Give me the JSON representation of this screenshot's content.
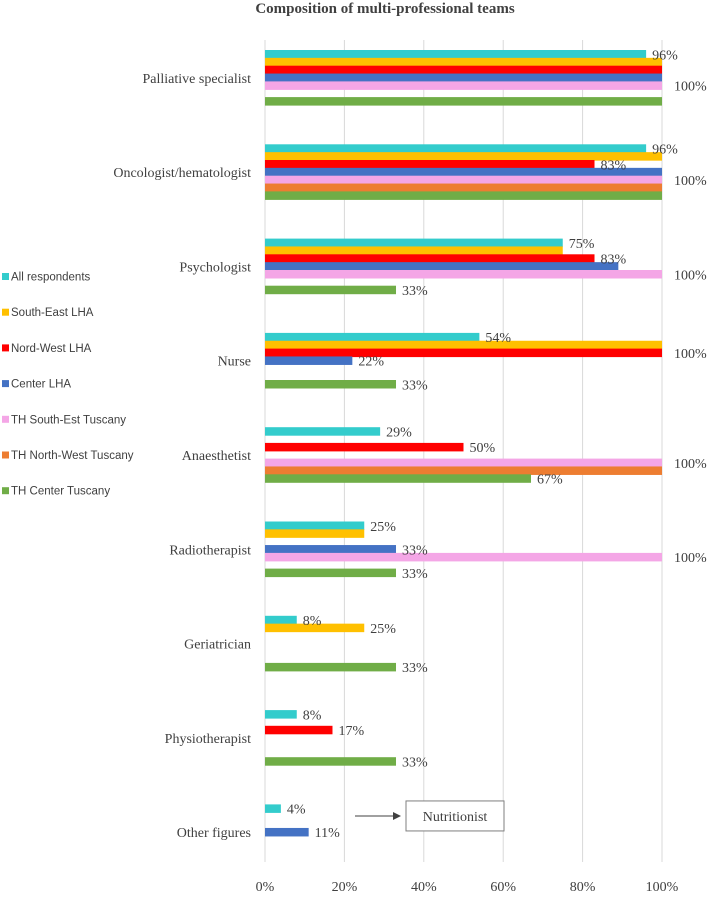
{
  "chart_data": {
    "type": "bar",
    "orientation": "horizontal",
    "title": "Composition of multi-professional  teams",
    "xlim": [
      0,
      100
    ],
    "x_ticks": [
      "0%",
      "20%",
      "40%",
      "60%",
      "80%",
      "100%"
    ],
    "grid": true,
    "legend_position": "left",
    "categories": [
      "Palliative specialist",
      "Oncologist/hematologist",
      "Psychologist",
      "Nurse",
      "Anaesthetist",
      "Radiotherapist",
      "Geriatrician",
      "Physiotherapist",
      "Other figures"
    ],
    "series": [
      {
        "name": "All respondents",
        "color": "#33CCCC",
        "values": [
          96,
          96,
          75,
          54,
          29,
          25,
          8,
          8,
          4
        ]
      },
      {
        "name": "South-East LHA",
        "color": "#FFC000",
        "values": [
          100,
          100,
          75,
          100,
          0,
          25,
          25,
          0,
          0
        ]
      },
      {
        "name": "Nord-West LHA",
        "color": "#FF0000",
        "values": [
          100,
          83,
          83,
          100,
          50,
          0,
          0,
          17,
          0
        ]
      },
      {
        "name": "Center LHA",
        "color": "#4472C4",
        "values": [
          100,
          100,
          89,
          22,
          0,
          33,
          0,
          0,
          11
        ]
      },
      {
        "name": "TH South-Est Tuscany",
        "color": "#F4A6E6",
        "values": [
          100,
          100,
          100,
          0,
          100,
          100,
          0,
          0,
          0
        ]
      },
      {
        "name": "TH North-West Tuscany",
        "color": "#ED7D31",
        "values": [
          0,
          100,
          0,
          0,
          100,
          0,
          0,
          0,
          0
        ]
      },
      {
        "name": "TH Center Tuscany",
        "color": "#70AD47",
        "values": [
          100,
          100,
          33,
          33,
          67,
          33,
          33,
          33,
          0
        ]
      }
    ],
    "data_labels": [
      {
        "category": 0,
        "series": 0,
        "text": "96%"
      },
      {
        "category": 0,
        "series": 4,
        "text": "100%"
      },
      {
        "category": 1,
        "series": 0,
        "text": "96%"
      },
      {
        "category": 1,
        "series": 2,
        "text": "83%"
      },
      {
        "category": 1,
        "series": 4,
        "text": "100%"
      },
      {
        "category": 2,
        "series": 0,
        "text": "75%"
      },
      {
        "category": 2,
        "series": 2,
        "text": "83%"
      },
      {
        "category": 2,
        "series": 4,
        "text": "100%"
      },
      {
        "category": 2,
        "series": 6,
        "text": "33%"
      },
      {
        "category": 3,
        "series": 0,
        "text": "54%"
      },
      {
        "category": 3,
        "series": 2,
        "text": "100%"
      },
      {
        "category": 3,
        "series": 3,
        "text": "22%"
      },
      {
        "category": 3,
        "series": 6,
        "text": "33%"
      },
      {
        "category": 4,
        "series": 0,
        "text": "29%"
      },
      {
        "category": 4,
        "series": 2,
        "text": "50%"
      },
      {
        "category": 4,
        "series": 4,
        "text": "100%"
      },
      {
        "category": 4,
        "series": 6,
        "text": "67%"
      },
      {
        "category": 5,
        "series": 0,
        "text": "25%"
      },
      {
        "category": 5,
        "series": 3,
        "text": "33%"
      },
      {
        "category": 5,
        "series": 4,
        "text": "100%"
      },
      {
        "category": 5,
        "series": 6,
        "text": "33%"
      },
      {
        "category": 6,
        "series": 0,
        "text": "8%"
      },
      {
        "category": 6,
        "series": 1,
        "text": "25%"
      },
      {
        "category": 6,
        "series": 6,
        "text": "33%"
      },
      {
        "category": 7,
        "series": 0,
        "text": "8%"
      },
      {
        "category": 7,
        "series": 2,
        "text": "17%"
      },
      {
        "category": 7,
        "series": 6,
        "text": "33%"
      },
      {
        "category": 8,
        "series": 0,
        "text": "4%"
      },
      {
        "category": 8,
        "series": 3,
        "text": "11%"
      }
    ],
    "annotation": {
      "category": 8,
      "series": 3,
      "text": "Nutritionist"
    }
  }
}
